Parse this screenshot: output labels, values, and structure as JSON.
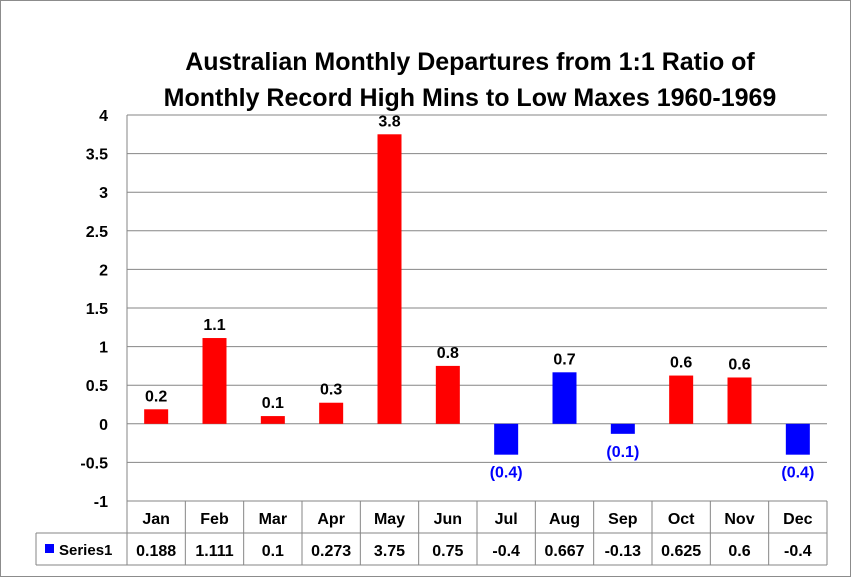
{
  "chart_data": {
    "type": "bar",
    "title": [
      "Australian  Monthly Departures from 1:1 Ratio of",
      "Monthly Record High Mins to Low Maxes 1960-1969"
    ],
    "categories": [
      "Jan",
      "Feb",
      "Mar",
      "Apr",
      "May",
      "Jun",
      "Jul",
      "Aug",
      "Sep",
      "Oct",
      "Nov",
      "Dec"
    ],
    "series": [
      {
        "name": "Series1",
        "values": [
          0.188,
          1.111,
          0.1,
          0.273,
          3.75,
          0.75,
          -0.4,
          0.667,
          -0.13,
          0.625,
          0.6,
          -0.4
        ],
        "table_values": [
          "0.188",
          "1.111",
          "0.1",
          "0.273",
          "3.75",
          "0.75",
          "-0.4",
          "0.667",
          "-0.13",
          "0.625",
          "0.6",
          "-0.4"
        ],
        "data_labels": [
          "0.2",
          "1.1",
          "0.1",
          "0.3",
          "3.8",
          "0.8",
          "(0.4)",
          "0.7",
          "(0.1)",
          "0.6",
          "0.6",
          "(0.4)"
        ],
        "bar_colors": [
          "#ff0000",
          "#ff0000",
          "#ff0000",
          "#ff0000",
          "#ff0000",
          "#ff0000",
          "#0000ff",
          "#0000ff",
          "#0000ff",
          "#ff0000",
          "#ff0000",
          "#0000ff"
        ],
        "legend_color": "#0000ff"
      }
    ],
    "ylim": [
      -1,
      4
    ],
    "yticks": [
      "-1",
      "-0.5",
      "0",
      "0.5",
      "1",
      "1.5",
      "2",
      "2.5",
      "3",
      "3.5",
      "4"
    ],
    "grid": true,
    "legend": "data-table",
    "xlabel": "",
    "ylabel": ""
  },
  "colors": {
    "positive": "#ff0000",
    "negative": "#0000ff",
    "grid": "#868686",
    "label_negative": "#0000ff",
    "label_positive": "#000000"
  }
}
